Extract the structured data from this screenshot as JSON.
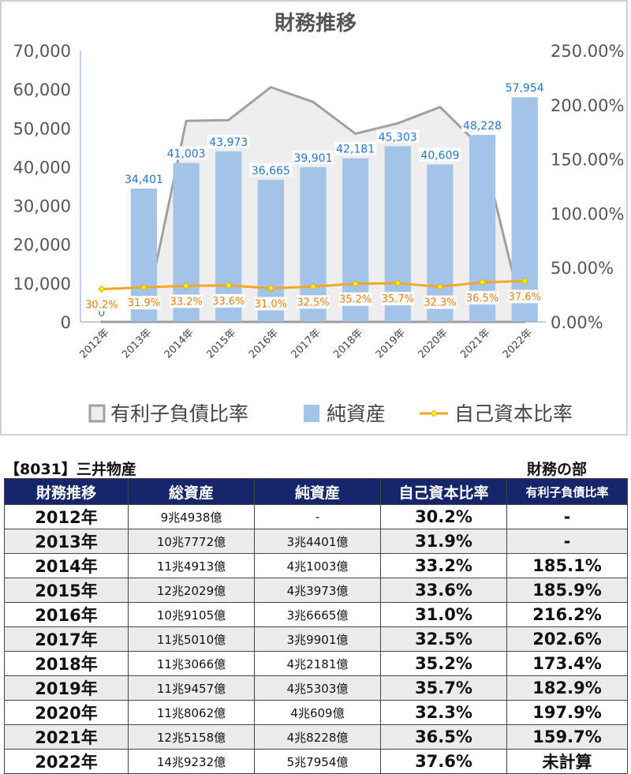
{
  "chart": {
    "title": "財務推移",
    "legend": [
      {
        "label": "有利子負債比率",
        "icon": "area-swatch-icon"
      },
      {
        "label": "純資産",
        "icon": "bar-swatch-icon"
      },
      {
        "label": "自己資本比率",
        "icon": "line-marker-icon"
      }
    ]
  },
  "chart_data": {
    "type": "bar",
    "title": "財務推移",
    "categories": [
      "2012年",
      "2013年",
      "2014年",
      "2015年",
      "2016年",
      "2017年",
      "2018年",
      "2019年",
      "2020年",
      "2021年",
      "2022年"
    ],
    "left_axis": {
      "ylim": [
        0,
        70000
      ],
      "ticks": [
        "0",
        "10,000",
        "20,000",
        "30,000",
        "40,000",
        "50,000",
        "60,000",
        "70,000"
      ]
    },
    "right_axis": {
      "ylim": [
        0,
        250
      ],
      "ticks": [
        "0.00%",
        "50.00%",
        "100.00%",
        "150.00%",
        "200.00%",
        "250.00%"
      ]
    },
    "series": [
      {
        "name": "純資産",
        "kind": "bar",
        "axis": "left",
        "color": "#a3c4e8",
        "values": [
          0,
          34401,
          41003,
          43973,
          36665,
          39901,
          42181,
          45303,
          40609,
          48228,
          57954
        ],
        "labels": [
          "0",
          "34,401",
          "41,003",
          "43,973",
          "36,665",
          "39,901",
          "42,181",
          "45,303",
          "40,609",
          "48,228",
          "57,954"
        ]
      },
      {
        "name": "有利子負債比率",
        "kind": "area",
        "axis": "right",
        "color": "#a0a0a0",
        "values": [
          0,
          0,
          185.1,
          185.9,
          216.2,
          202.6,
          173.4,
          182.9,
          197.9,
          159.7,
          0
        ]
      },
      {
        "name": "自己資本比率",
        "kind": "line",
        "axis": "right",
        "color": "#f5a623",
        "values": [
          30.2,
          31.9,
          33.2,
          33.6,
          31.0,
          32.5,
          35.2,
          35.7,
          32.3,
          36.5,
          37.6
        ],
        "labels": [
          "30.2%",
          "31.9%",
          "33.2%",
          "33.6%",
          "31.0%",
          "32.5%",
          "35.2%",
          "35.7%",
          "32.3%",
          "36.5%",
          "37.6%"
        ]
      }
    ],
    "grid": false,
    "legend_position": "bottom"
  },
  "table": {
    "company": "【8031】三井物産",
    "section": "財務の部",
    "headers": [
      "財務推移",
      "総資産",
      "純資産",
      "自己資本比率",
      "有利子負債比率"
    ],
    "rows": [
      [
        "2012年",
        "9兆4938億",
        "-",
        "30.2%",
        "-"
      ],
      [
        "2013年",
        "10兆7772億",
        "3兆4401億",
        "31.9%",
        "-"
      ],
      [
        "2014年",
        "11兆4913億",
        "4兆1003億",
        "33.2%",
        "185.1%"
      ],
      [
        "2015年",
        "12兆2029億",
        "4兆3973億",
        "33.6%",
        "185.9%"
      ],
      [
        "2016年",
        "10兆9105億",
        "3兆6665億",
        "31.0%",
        "216.2%"
      ],
      [
        "2017年",
        "11兆5010億",
        "3兆9901億",
        "32.5%",
        "202.6%"
      ],
      [
        "2018年",
        "11兆3066億",
        "4兆2181億",
        "35.2%",
        "173.4%"
      ],
      [
        "2019年",
        "11兆9457億",
        "4兆5303億",
        "35.7%",
        "182.9%"
      ],
      [
        "2020年",
        "11兆8062億",
        "4兆609億",
        "32.3%",
        "197.9%"
      ],
      [
        "2021年",
        "12兆5158億",
        "4兆8228億",
        "36.5%",
        "159.7%"
      ],
      [
        "2022年",
        "14兆9232億",
        "5兆7954億",
        "37.6%",
        "未計算"
      ]
    ]
  }
}
